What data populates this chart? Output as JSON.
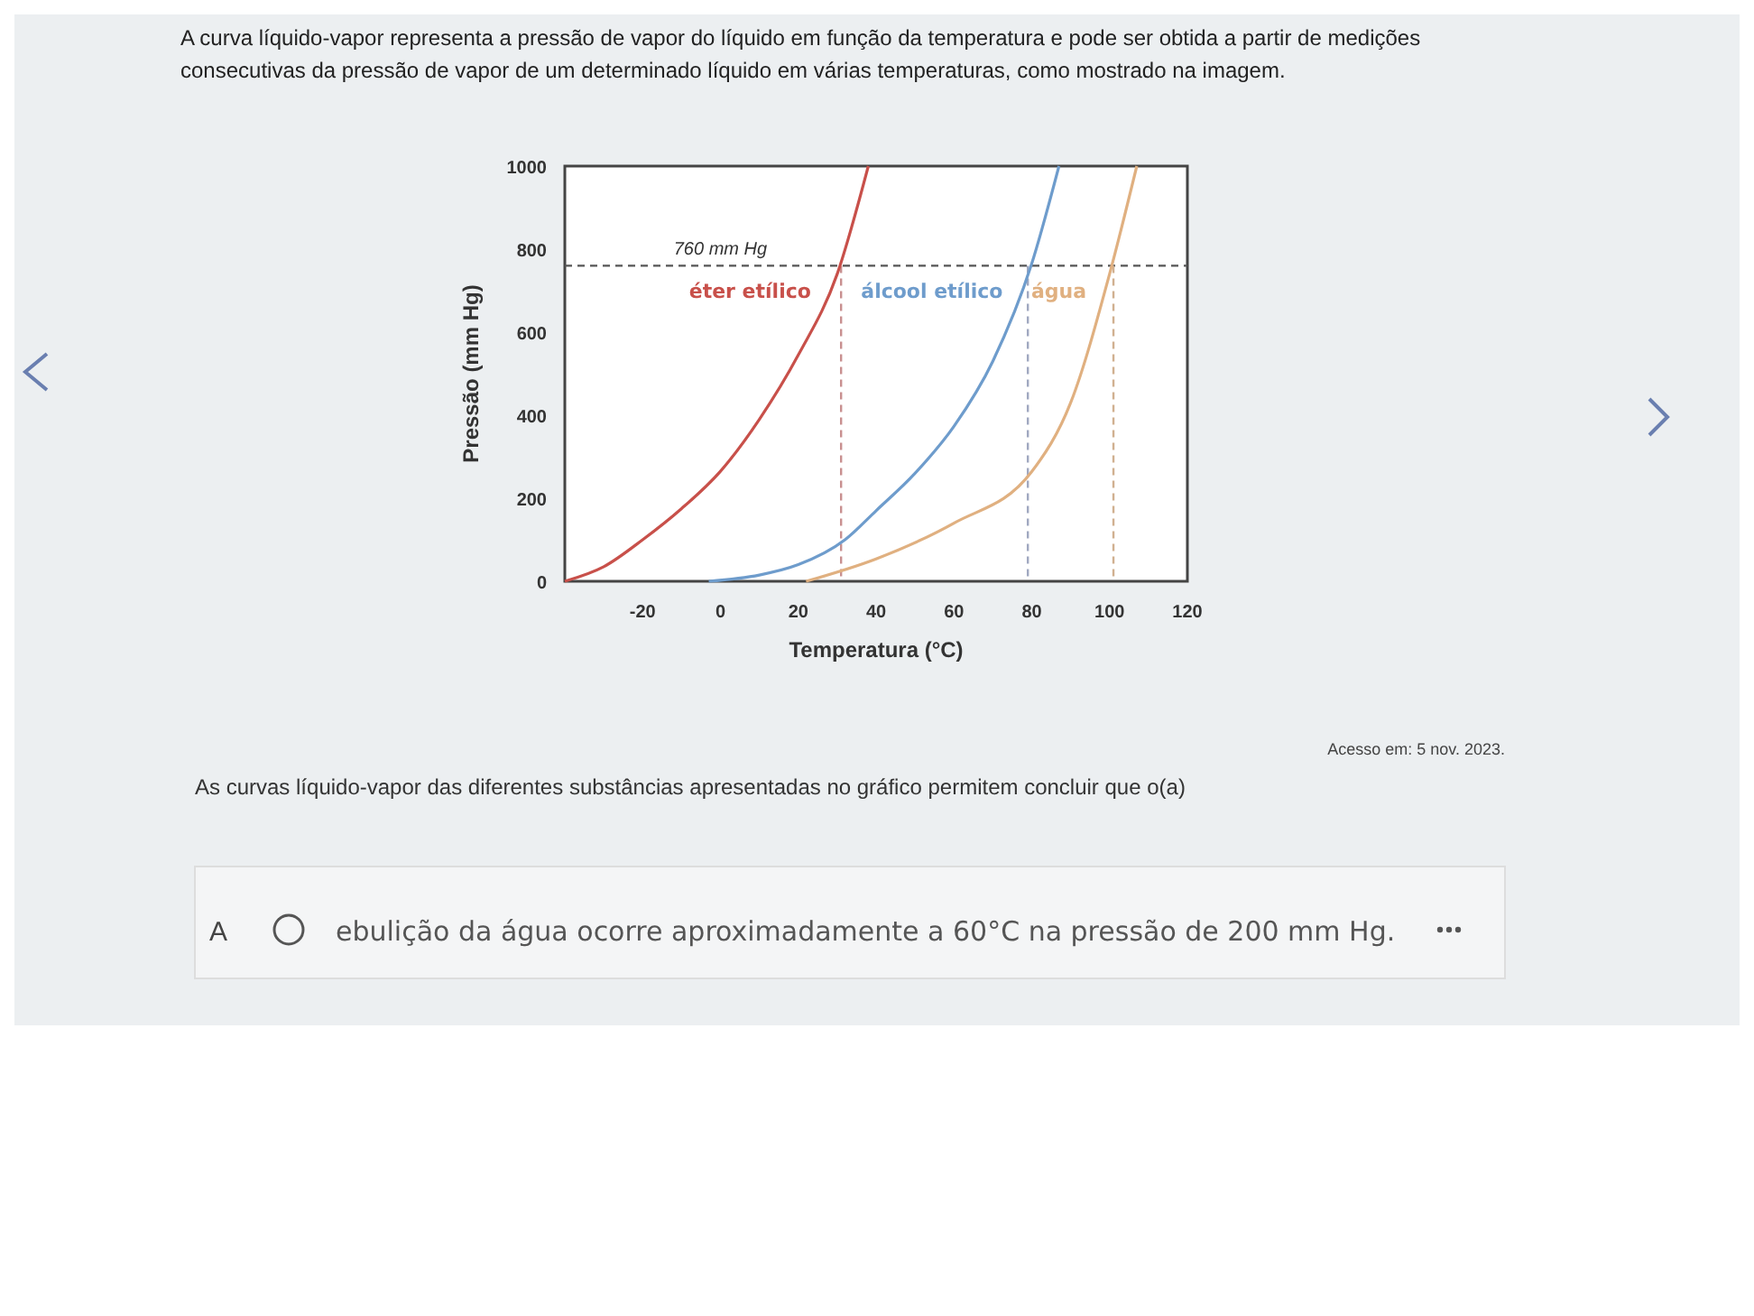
{
  "chart_data": {
    "type": "line",
    "title": "A curva líquido-vapor representa a pressão de vapor do líquido em função da temperatura e pode ser obtida a partir de medições consecutivas da pressão de vapor de um determinado líquido em várias temperaturas, como mostrado na imagem.",
    "xlabel": "Temperatura (°C)",
    "ylabel": "Pressão (mm Hg)",
    "xlim": [
      -40,
      120
    ],
    "ylim": [
      0,
      1000
    ],
    "xticks": [
      -20,
      0,
      20,
      40,
      60,
      80,
      100,
      120
    ],
    "yticks": [
      0,
      200,
      400,
      600,
      800,
      1000
    ],
    "grid": false,
    "line_style": "solid",
    "series": [
      {
        "name": "éter etílico",
        "color": "#c8504a",
        "x": [
          -40,
          -30,
          -20,
          -10,
          0,
          10,
          20,
          30,
          38
        ],
        "values": [
          0,
          35,
          100,
          175,
          265,
          390,
          545,
          740,
          1000
        ]
      },
      {
        "name": "álcool etílico",
        "color": "#6e9ccc",
        "x": [
          -3,
          10,
          20,
          32,
          40,
          50,
          60,
          70,
          80,
          87
        ],
        "values": [
          0,
          15,
          40,
          100,
          170,
          260,
          373,
          530,
          765,
          1000
        ]
      },
      {
        "name": "água",
        "color": "#e0b080",
        "x": [
          22,
          40,
          60,
          80,
          90,
          100,
          107
        ],
        "values": [
          0,
          54,
          140,
          264,
          430,
          740,
          1000
        ]
      }
    ],
    "ref_lines": [
      {
        "axis": "y",
        "value": 760,
        "label": "760 mm Hg",
        "color": "#555555",
        "line_style": "dashed"
      },
      {
        "axis": "x",
        "value": 31,
        "color": "#c89090",
        "line_style": "dashed"
      },
      {
        "axis": "x",
        "value": 79,
        "color": "#a0a8c0",
        "line_style": "dashed"
      },
      {
        "axis": "x",
        "value": 101,
        "color": "#d0b090",
        "line_style": "dashed"
      }
    ],
    "annotations": [
      "Acesso em: 5 nov. 2023.",
      "As curvas líquido-vapor das diferentes substâncias apresentadas no gráfico permitem concluir que o(a)",
      "A",
      "ebulição da água ocorre aproximadamente a 60°C na pressão de 200 mm Hg."
    ]
  }
}
